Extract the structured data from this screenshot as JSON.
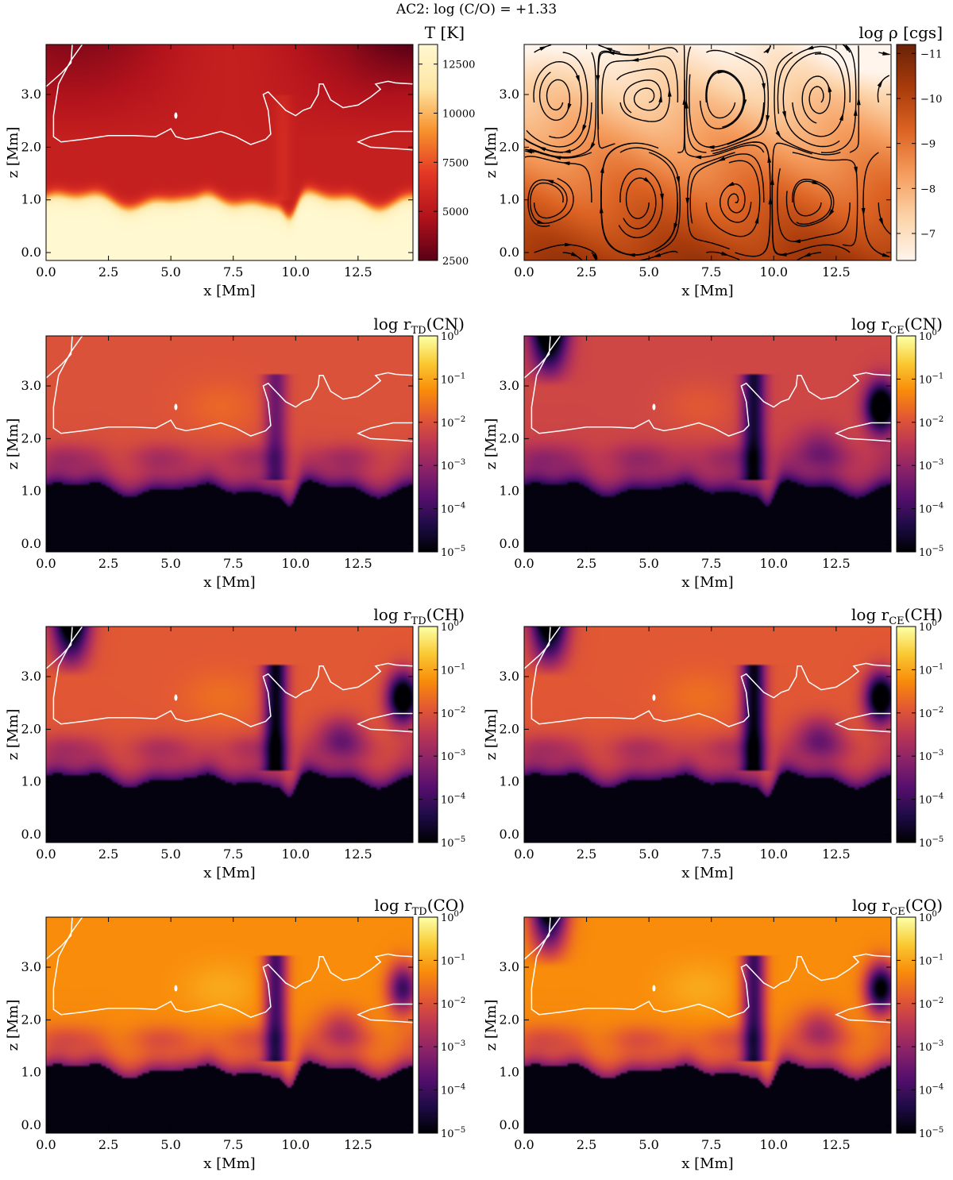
{
  "figure": {
    "title": "AC2: log (C/O) = +1.33"
  },
  "colors": {
    "hot_cmap": [
      "#5c0016",
      "#b3131c",
      "#e33725",
      "#f7922d",
      "#fde6a4",
      "#fff8d0"
    ],
    "rho_cmap": [
      "#fff5ec",
      "#fcd3a8",
      "#f59d5e",
      "#dd6424",
      "#aa3c0c",
      "#6b2307"
    ],
    "inferno_cmap": [
      "#000004",
      "#1f0c48",
      "#550f6d",
      "#88226a",
      "#ba3655",
      "#e35933",
      "#f98c0a",
      "#f9c932",
      "#fcffa4"
    ],
    "contour": "#ffffff",
    "streamline": "#000000"
  },
  "chart_data": [
    {
      "id": "temperature",
      "type": "heatmap",
      "title": "T [K]",
      "xlabel": "x [Mm]",
      "ylabel": "z [Mm]",
      "xlim": [
        0.0,
        14.7
      ],
      "ylim": [
        -0.15,
        3.95
      ],
      "xticks": [
        "0.0",
        "2.5",
        "5.0",
        "7.5",
        "10.0",
        "12.5"
      ],
      "yticks": [
        "0.0",
        "1.0",
        "2.0",
        "3.0"
      ],
      "colorbar": {
        "scale": "linear",
        "range": [
          2500,
          13500
        ],
        "ticks": [
          "2500",
          "5000",
          "7500",
          "10000",
          "12500"
        ]
      },
      "colormap": "hot_cmap",
      "field": "temperature",
      "overlay": [
        "contour"
      ]
    },
    {
      "id": "density",
      "type": "heatmap",
      "title": "log ρ [cgs]",
      "xlabel": "x [Mm]",
      "ylabel": "z [Mm]",
      "xlim": [
        0.0,
        14.7
      ],
      "ylim": [
        -0.15,
        3.95
      ],
      "xticks": [
        "0.0",
        "2.5",
        "5.0",
        "7.5",
        "10.0",
        "12.5"
      ],
      "yticks": [
        "0.0",
        "1.0",
        "2.0",
        "3.0"
      ],
      "colorbar": {
        "scale": "linear",
        "range": [
          -11.2,
          -6.4
        ],
        "ticks": [
          "−7",
          "−8",
          "−9",
          "−10",
          "−11"
        ]
      },
      "colormap": "rho_cmap",
      "field": "density",
      "overlay": [
        "streamlines"
      ]
    },
    {
      "id": "rtd_cn",
      "type": "heatmap",
      "title_prefix": "log r",
      "title_sub": "TD",
      "title_species": "(CN)",
      "xlabel": "x [Mm]",
      "ylabel": "z [Mm]",
      "xlim": [
        0.0,
        14.7
      ],
      "ylim": [
        -0.15,
        3.95
      ],
      "xticks": [
        "0.0",
        "2.5",
        "5.0",
        "7.5",
        "10.0",
        "12.5"
      ],
      "yticks": [
        "0.0",
        "1.0",
        "2.0",
        "3.0"
      ],
      "colorbar": {
        "scale": "log",
        "range": [
          -5,
          0
        ],
        "tick_exponents": [
          "0",
          "−1",
          "−2",
          "−3",
          "−4",
          "−5"
        ]
      },
      "colormap": "inferno_cmap",
      "field": "ratio",
      "variant": {
        "level": -2.0,
        "stripe": 0.0,
        "dark_tl": 0.0,
        "dark_tr": 0.0
      },
      "overlay": [
        "contour"
      ]
    },
    {
      "id": "rce_cn",
      "type": "heatmap",
      "title_prefix": "log r",
      "title_sub": "CE",
      "title_species": "(CN)",
      "xlabel": "x [Mm]",
      "ylabel": "z [Mm]",
      "xlim": [
        0.0,
        14.7
      ],
      "ylim": [
        -0.15,
        3.95
      ],
      "xticks": [
        "0.0",
        "2.5",
        "5.0",
        "7.5",
        "10.0",
        "12.5"
      ],
      "yticks": [
        "0.0",
        "1.0",
        "2.0",
        "3.0"
      ],
      "colorbar": {
        "scale": "log",
        "range": [
          -5,
          0
        ],
        "tick_exponents": [
          "0",
          "−1",
          "−2",
          "−3",
          "−4",
          "−5"
        ]
      },
      "colormap": "inferno_cmap",
      "field": "ratio",
      "variant": {
        "level": -2.2,
        "stripe": 0.6,
        "dark_tl": 1.0,
        "dark_tr": 1.0
      },
      "overlay": [
        "contour"
      ]
    },
    {
      "id": "rtd_ch",
      "type": "heatmap",
      "title_prefix": "log r",
      "title_sub": "TD",
      "title_species": "(CH)",
      "xlabel": "x [Mm]",
      "ylabel": "z [Mm]",
      "xlim": [
        0.0,
        14.7
      ],
      "ylim": [
        -0.15,
        3.95
      ],
      "xticks": [
        "0.0",
        "2.5",
        "5.0",
        "7.5",
        "10.0",
        "12.5"
      ],
      "yticks": [
        "0.0",
        "1.0",
        "2.0",
        "3.0"
      ],
      "colorbar": {
        "scale": "log",
        "range": [
          -5,
          0
        ],
        "tick_exponents": [
          "0",
          "−1",
          "−2",
          "−3",
          "−4",
          "−5"
        ]
      },
      "colormap": "inferno_cmap",
      "field": "ratio",
      "variant": {
        "level": -1.9,
        "stripe": 1.0,
        "dark_tl": 1.0,
        "dark_tr": 1.0
      },
      "overlay": [
        "contour"
      ]
    },
    {
      "id": "rce_ch",
      "type": "heatmap",
      "title_prefix": "log r",
      "title_sub": "CE",
      "title_species": "(CH)",
      "xlabel": "x [Mm]",
      "ylabel": "z [Mm]",
      "xlim": [
        0.0,
        14.7
      ],
      "ylim": [
        -0.15,
        3.95
      ],
      "xticks": [
        "0.0",
        "2.5",
        "5.0",
        "7.5",
        "10.0",
        "12.5"
      ],
      "yticks": [
        "0.0",
        "1.0",
        "2.0",
        "3.0"
      ],
      "colorbar": {
        "scale": "log",
        "range": [
          -5,
          0
        ],
        "tick_exponents": [
          "0",
          "−1",
          "−2",
          "−3",
          "−4",
          "−5"
        ]
      },
      "colormap": "inferno_cmap",
      "field": "ratio",
      "variant": {
        "level": -1.9,
        "stripe": 1.0,
        "dark_tl": 1.0,
        "dark_tr": 1.0
      },
      "overlay": [
        "contour"
      ]
    },
    {
      "id": "rtd_co",
      "type": "heatmap",
      "title_prefix": "log r",
      "title_sub": "TD",
      "title_species": "(CO)",
      "xlabel": "x [Mm]",
      "ylabel": "z [Mm]",
      "xlim": [
        0.0,
        14.7
      ],
      "ylim": [
        -0.15,
        3.95
      ],
      "xticks": [
        "0.0",
        "2.5",
        "5.0",
        "7.5",
        "10.0",
        "12.5"
      ],
      "yticks": [
        "0.0",
        "1.0",
        "2.0",
        "3.0"
      ],
      "colorbar": {
        "scale": "log",
        "range": [
          -5,
          0
        ],
        "tick_exponents": [
          "0",
          "−1",
          "−2",
          "−3",
          "−4",
          "−5"
        ]
      },
      "colormap": "inferno_cmap",
      "field": "ratio",
      "variant": {
        "level": -1.25,
        "stripe": 0.8,
        "dark_tl": 0.0,
        "dark_tr": 0.7
      },
      "overlay": [
        "contour"
      ]
    },
    {
      "id": "rce_co",
      "type": "heatmap",
      "title_prefix": "log r",
      "title_sub": "CE",
      "title_species": "(CO)",
      "xlabel": "x [Mm]",
      "ylabel": "z [Mm]",
      "xlim": [
        0.0,
        14.7
      ],
      "ylim": [
        -0.15,
        3.95
      ],
      "xticks": [
        "0.0",
        "2.5",
        "5.0",
        "7.5",
        "10.0",
        "12.5"
      ],
      "yticks": [
        "0.0",
        "1.0",
        "2.0",
        "3.0"
      ],
      "colorbar": {
        "scale": "log",
        "range": [
          -5,
          0
        ],
        "tick_exponents": [
          "0",
          "−1",
          "−2",
          "−3",
          "−4",
          "−5"
        ]
      },
      "colormap": "inferno_cmap",
      "field": "ratio",
      "variant": {
        "level": -1.25,
        "stripe": 0.9,
        "dark_tl": 1.0,
        "dark_tr": 1.0
      },
      "overlay": [
        "contour"
      ]
    }
  ],
  "contour_lines": [
    {
      "name": "main-contour",
      "points": [
        [
          0.0,
          3.15
        ],
        [
          0.6,
          3.4
        ],
        [
          1.0,
          3.6
        ],
        [
          1.05,
          3.95
        ]
      ]
    },
    {
      "name": "main-contour-2",
      "points": [
        [
          1.45,
          3.95
        ],
        [
          1.0,
          3.65
        ],
        [
          0.5,
          3.2
        ],
        [
          0.3,
          2.6
        ],
        [
          0.3,
          2.2
        ],
        [
          0.6,
          2.1
        ],
        [
          1.5,
          2.15
        ],
        [
          2.5,
          2.22
        ],
        [
          3.5,
          2.22
        ],
        [
          4.4,
          2.2
        ],
        [
          4.8,
          2.3
        ],
        [
          5.0,
          2.35
        ],
        [
          5.2,
          2.2
        ],
        [
          5.6,
          2.15
        ],
        [
          6.2,
          2.2
        ],
        [
          7.0,
          2.3
        ],
        [
          7.6,
          2.2
        ],
        [
          8.2,
          2.05
        ],
        [
          8.8,
          2.15
        ],
        [
          9.0,
          2.25
        ],
        [
          8.9,
          2.7
        ],
        [
          8.7,
          3.0
        ],
        [
          8.9,
          3.05
        ],
        [
          9.3,
          2.85
        ],
        [
          9.6,
          2.7
        ],
        [
          10.0,
          2.6
        ],
        [
          10.3,
          2.7
        ],
        [
          10.6,
          2.75
        ],
        [
          10.9,
          3.0
        ],
        [
          10.95,
          3.2
        ],
        [
          11.1,
          3.2
        ],
        [
          11.4,
          2.9
        ],
        [
          11.9,
          2.75
        ],
        [
          12.5,
          2.8
        ],
        [
          13.0,
          2.95
        ],
        [
          13.4,
          3.1
        ],
        [
          13.2,
          3.2
        ],
        [
          13.7,
          3.25
        ],
        [
          14.0,
          3.22
        ],
        [
          14.7,
          3.2
        ]
      ]
    },
    {
      "name": "right-contour",
      "points": [
        [
          14.7,
          2.3
        ],
        [
          13.9,
          2.3
        ],
        [
          13.0,
          2.2
        ],
        [
          12.5,
          2.1
        ],
        [
          13.0,
          2.0
        ],
        [
          13.8,
          1.98
        ],
        [
          14.7,
          1.95
        ]
      ]
    }
  ]
}
